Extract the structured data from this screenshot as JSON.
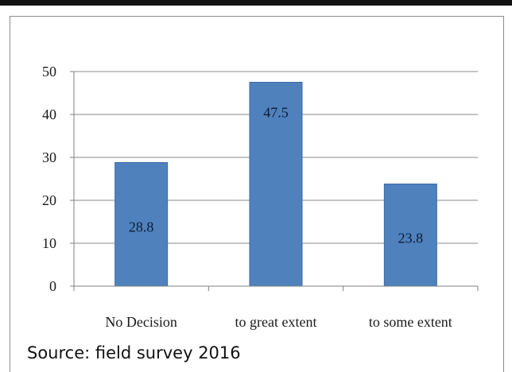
{
  "chart_data": {
    "type": "bar",
    "categories": [
      "No Decision",
      "to great extent",
      "to some extent"
    ],
    "values": [
      28.8,
      47.5,
      23.8
    ],
    "data_labels": [
      "28.8",
      "47.5",
      "23.8"
    ],
    "title": "",
    "xlabel": "",
    "ylabel": "",
    "ylim": [
      0,
      50
    ],
    "yticks": [
      0,
      10,
      20,
      30,
      40,
      50
    ],
    "grid": true,
    "legend": "none",
    "bar_color": "#4f81bd",
    "bar_edge_color": "#3a6aa5"
  },
  "source_note": "Source: field survey 2016"
}
